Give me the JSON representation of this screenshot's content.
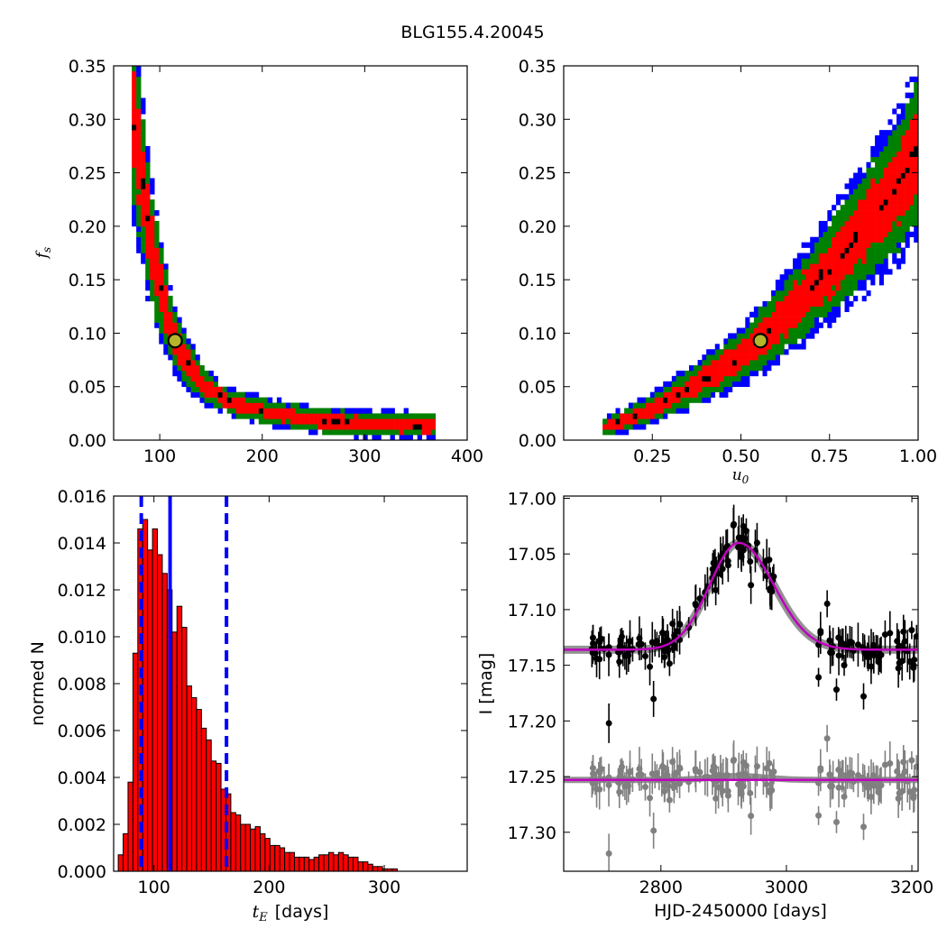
{
  "figure": {
    "title": "BLG155.4.20045"
  },
  "colors": {
    "outer": "#0000ff",
    "middle": "#008000",
    "inner": "#ff0000",
    "peak": "#000000",
    "marker_fill": "#b5b52b",
    "hist_bar": "#ff0000",
    "median_line": "#0000ff",
    "model": "#bf00bf",
    "model_band": "#808080",
    "data": "#000000",
    "residuals": "#808080"
  },
  "chart_data": [
    {
      "type": "heatmap",
      "id": "panel_tE_fs",
      "xlabel": "",
      "ylabel": "f_s",
      "xlim": [
        55,
        400
      ],
      "ylim": [
        0.0,
        0.35
      ],
      "xticks": [
        "100",
        "200",
        "300",
        "400"
      ],
      "yticks": [
        "0.00",
        "0.05",
        "0.10",
        "0.15",
        "0.20",
        "0.25",
        "0.30",
        "0.35"
      ],
      "ridge": [
        [
          75,
          0.3
        ],
        [
          82,
          0.25
        ],
        [
          90,
          0.19
        ],
        [
          100,
          0.145
        ],
        [
          112,
          0.1
        ],
        [
          125,
          0.075
        ],
        [
          145,
          0.05
        ],
        [
          175,
          0.033
        ],
        [
          210,
          0.025
        ],
        [
          260,
          0.018
        ],
        [
          310,
          0.015
        ],
        [
          370,
          0.013
        ]
      ],
      "best_fit": {
        "x": 115,
        "y": 0.093
      }
    },
    {
      "type": "heatmap",
      "id": "panel_u0_fs",
      "xlabel": "u_0",
      "ylabel": "",
      "xlim": [
        0.0,
        1.0
      ],
      "ylim": [
        0.0,
        0.35
      ],
      "xticks": [
        "0.25",
        "0.50",
        "0.75",
        "1.00"
      ],
      "yticks": [
        "0.00",
        "0.05",
        "0.10",
        "0.15",
        "0.20",
        "0.25",
        "0.30",
        "0.35"
      ],
      "ridge": [
        [
          0.12,
          0.013
        ],
        [
          0.2,
          0.022
        ],
        [
          0.3,
          0.038
        ],
        [
          0.4,
          0.058
        ],
        [
          0.5,
          0.078
        ],
        [
          0.55,
          0.093
        ],
        [
          0.65,
          0.125
        ],
        [
          0.75,
          0.16
        ],
        [
          0.85,
          0.2
        ],
        [
          0.95,
          0.24
        ],
        [
          1.0,
          0.27
        ]
      ],
      "best_fit": {
        "x": 0.555,
        "y": 0.093
      }
    },
    {
      "type": "bar",
      "id": "panel_hist",
      "xlabel": "t_E [days]",
      "xlabel_var": "t_E",
      "xlabel_unit": "[days]",
      "ylabel": "normed N",
      "xlim": [
        65,
        372
      ],
      "ylim": [
        0.0,
        0.016
      ],
      "xticks": [
        "100",
        "200",
        "300"
      ],
      "yticks": [
        "0.000",
        "0.002",
        "0.004",
        "0.006",
        "0.008",
        "0.010",
        "0.012",
        "0.014",
        "0.016"
      ],
      "bin_start": 69,
      "bin_width": 4.25,
      "values": [
        0.0007,
        0.0016,
        0.0038,
        0.0093,
        0.0146,
        0.015,
        0.0137,
        0.0146,
        0.0135,
        0.0127,
        0.012,
        0.0102,
        0.0113,
        0.0104,
        0.0079,
        0.0074,
        0.0069,
        0.0061,
        0.0056,
        0.0047,
        0.0046,
        0.0035,
        0.0033,
        0.0025,
        0.0024,
        0.002,
        0.002,
        0.0018,
        0.0019,
        0.0016,
        0.0014,
        0.0011,
        0.0011,
        0.001,
        0.0008,
        0.0008,
        0.0006,
        0.0006,
        0.0006,
        0.0005,
        0.0006,
        0.0007,
        0.0007,
        0.0008,
        0.0007,
        0.0008,
        0.0007,
        0.0006,
        0.0006,
        0.0004,
        0.0004,
        0.0003,
        0.0002,
        0.0002,
        0.0001,
        0.0001,
        0.0001
      ],
      "median": 114,
      "lower": 89,
      "upper": 163
    },
    {
      "type": "scatter",
      "id": "panel_lc",
      "xlabel": "HJD-2450000 [days]",
      "ylabel": "I [mag]",
      "xlim": [
        2645,
        3210
      ],
      "ylim": [
        17.335,
        16.998
      ],
      "xticks": [
        "2800",
        "3000",
        "3200"
      ],
      "yticks": [
        "17.00",
        "17.05",
        "17.10",
        "17.15",
        "17.20",
        "17.25",
        "17.30"
      ],
      "model": {
        "baseline": 17.136,
        "t0": 2924,
        "peak": 17.04,
        "rise_width": 62,
        "fall_width": 75
      },
      "residual_offset": 17.253,
      "observing_windows": [
        [
          2690,
          2845
        ],
        [
          2850,
          2980
        ],
        [
          3050,
          3210
        ]
      ]
    }
  ]
}
